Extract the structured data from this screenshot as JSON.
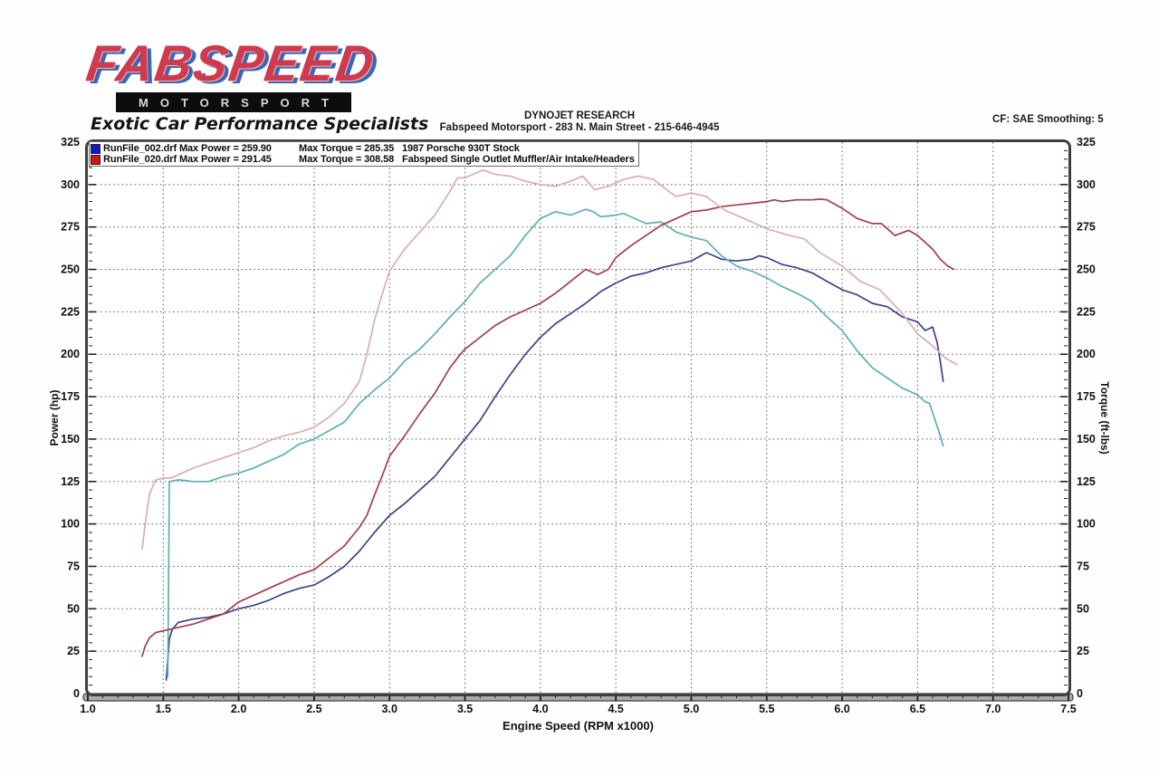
{
  "logo": {
    "brand": "FABSPEED",
    "subbrand": "MOTORSPORT",
    "tagline": "Exotic Car Performance Specialists"
  },
  "header": {
    "title": "DYNOJET RESEARCH",
    "subtitle": "Fabspeed Motorsport - 283 N. Main Street - 215-646-4945",
    "correction_info": "CF: SAE  Smoothing: 5"
  },
  "chart_data": {
    "type": "line",
    "xlabel": "Engine Speed (RPM x1000)",
    "ylabel_left": "Power (hp)",
    "ylabel_right": "Torque (ft-lbs)",
    "xlim": [
      1.0,
      7.5
    ],
    "ylim": [
      0,
      325
    ],
    "x_ticks": [
      "1.0",
      "1.5",
      "2.0",
      "2.5",
      "3.0",
      "3.5",
      "4.0",
      "4.5",
      "5.0",
      "5.5",
      "6.0",
      "6.5",
      "7.0",
      "7.5"
    ],
    "y_ticks": [
      "0",
      "25",
      "50",
      "75",
      "100",
      "125",
      "150",
      "175",
      "200",
      "225",
      "250",
      "275",
      "300",
      "325"
    ],
    "x_minor_step": 0.1,
    "y_minor_step": 5,
    "grid": "dotted",
    "grid_color": "#3c3c3c",
    "legend_position": "top-left",
    "legend": [
      {
        "swatch": "#1515cc",
        "col1": "RunFile_002.drf Max Power = 259.90",
        "col2": "Max Torque = 285.35",
        "col3": "1987 Porsche 930T Stock"
      },
      {
        "swatch": "#cc1515",
        "col1": "RunFile_020.drf Max Power = 291.45",
        "col2": "Max Torque = 308.58",
        "col3": "Fabspeed Single Outlet Muffler/Air Intake/Headers"
      }
    ],
    "series": [
      {
        "name": "stock-power-hp",
        "run": "RunFile_002.drf",
        "max": 259.9,
        "color": "#3c4287",
        "points": [
          [
            1.52,
            8
          ],
          [
            1.53,
            20
          ],
          [
            1.54,
            32
          ],
          [
            1.56,
            38
          ],
          [
            1.6,
            42
          ],
          [
            1.7,
            44
          ],
          [
            1.8,
            45
          ],
          [
            1.9,
            47
          ],
          [
            2.0,
            50
          ],
          [
            2.1,
            52
          ],
          [
            2.2,
            55
          ],
          [
            2.3,
            59
          ],
          [
            2.4,
            62
          ],
          [
            2.5,
            64
          ],
          [
            2.6,
            69
          ],
          [
            2.7,
            75
          ],
          [
            2.8,
            84
          ],
          [
            2.9,
            95
          ],
          [
            3.0,
            105
          ],
          [
            3.1,
            112
          ],
          [
            3.2,
            120
          ],
          [
            3.3,
            128
          ],
          [
            3.4,
            139
          ],
          [
            3.5,
            150
          ],
          [
            3.6,
            161
          ],
          [
            3.7,
            175
          ],
          [
            3.8,
            188
          ],
          [
            3.9,
            200
          ],
          [
            4.0,
            210
          ],
          [
            4.1,
            218
          ],
          [
            4.2,
            224
          ],
          [
            4.3,
            230
          ],
          [
            4.4,
            237
          ],
          [
            4.5,
            242
          ],
          [
            4.6,
            246
          ],
          [
            4.7,
            248
          ],
          [
            4.8,
            251
          ],
          [
            4.9,
            253
          ],
          [
            5.0,
            255
          ],
          [
            5.1,
            259.9
          ],
          [
            5.15,
            258
          ],
          [
            5.2,
            256
          ],
          [
            5.3,
            255
          ],
          [
            5.4,
            256
          ],
          [
            5.45,
            258
          ],
          [
            5.5,
            257
          ],
          [
            5.6,
            253
          ],
          [
            5.7,
            251
          ],
          [
            5.8,
            248
          ],
          [
            5.9,
            243
          ],
          [
            6.0,
            238
          ],
          [
            6.1,
            235
          ],
          [
            6.2,
            230
          ],
          [
            6.3,
            228
          ],
          [
            6.4,
            222
          ],
          [
            6.5,
            219
          ],
          [
            6.55,
            214
          ],
          [
            6.6,
            216
          ],
          [
            6.63,
            207
          ],
          [
            6.65,
            196
          ],
          [
            6.67,
            184
          ]
        ]
      },
      {
        "name": "stock-torque-ftlbs",
        "run": "RunFile_002.drf",
        "max": 285.35,
        "color": "#5fafb4",
        "points": [
          [
            1.53,
            10
          ],
          [
            1.535,
            60
          ],
          [
            1.54,
            125
          ],
          [
            1.6,
            126
          ],
          [
            1.7,
            125
          ],
          [
            1.8,
            125
          ],
          [
            1.9,
            128
          ],
          [
            2.0,
            130
          ],
          [
            2.1,
            133
          ],
          [
            2.2,
            137
          ],
          [
            2.3,
            141
          ],
          [
            2.4,
            147
          ],
          [
            2.5,
            150
          ],
          [
            2.6,
            155
          ],
          [
            2.7,
            160
          ],
          [
            2.8,
            171
          ],
          [
            2.9,
            179
          ],
          [
            3.0,
            186
          ],
          [
            3.1,
            196
          ],
          [
            3.2,
            203
          ],
          [
            3.3,
            212
          ],
          [
            3.4,
            222
          ],
          [
            3.5,
            231
          ],
          [
            3.6,
            242
          ],
          [
            3.7,
            250
          ],
          [
            3.8,
            258
          ],
          [
            3.9,
            270
          ],
          [
            4.0,
            280
          ],
          [
            4.1,
            284
          ],
          [
            4.15,
            283
          ],
          [
            4.2,
            282
          ],
          [
            4.3,
            285.4
          ],
          [
            4.35,
            284
          ],
          [
            4.4,
            281
          ],
          [
            4.5,
            282
          ],
          [
            4.55,
            283
          ],
          [
            4.6,
            281
          ],
          [
            4.7,
            277
          ],
          [
            4.8,
            278
          ],
          [
            4.9,
            272
          ],
          [
            5.0,
            269
          ],
          [
            5.1,
            267
          ],
          [
            5.2,
            258
          ],
          [
            5.3,
            252
          ],
          [
            5.4,
            249
          ],
          [
            5.5,
            245
          ],
          [
            5.6,
            240
          ],
          [
            5.7,
            236
          ],
          [
            5.8,
            231
          ],
          [
            5.9,
            222
          ],
          [
            6.0,
            214
          ],
          [
            6.1,
            202
          ],
          [
            6.2,
            192
          ],
          [
            6.3,
            186
          ],
          [
            6.4,
            180
          ],
          [
            6.5,
            176
          ],
          [
            6.55,
            172
          ],
          [
            6.58,
            171
          ],
          [
            6.62,
            160
          ],
          [
            6.65,
            152
          ],
          [
            6.67,
            146
          ]
        ]
      },
      {
        "name": "fabspeed-power-hp",
        "run": "RunFile_020.drf",
        "max": 291.45,
        "color": "#a04048",
        "points": [
          [
            1.36,
            22
          ],
          [
            1.38,
            28
          ],
          [
            1.41,
            33
          ],
          [
            1.45,
            36
          ],
          [
            1.5,
            37
          ],
          [
            1.6,
            39
          ],
          [
            1.7,
            41
          ],
          [
            1.8,
            44
          ],
          [
            1.9,
            47
          ],
          [
            2.0,
            54
          ],
          [
            2.1,
            58
          ],
          [
            2.2,
            62
          ],
          [
            2.3,
            66
          ],
          [
            2.4,
            70
          ],
          [
            2.5,
            73
          ],
          [
            2.6,
            80
          ],
          [
            2.7,
            87
          ],
          [
            2.8,
            98
          ],
          [
            2.85,
            105
          ],
          [
            2.9,
            117
          ],
          [
            2.95,
            128
          ],
          [
            3.0,
            140
          ],
          [
            3.1,
            152
          ],
          [
            3.2,
            165
          ],
          [
            3.3,
            177
          ],
          [
            3.4,
            192
          ],
          [
            3.47,
            200
          ],
          [
            3.5,
            203
          ],
          [
            3.6,
            210
          ],
          [
            3.7,
            217
          ],
          [
            3.8,
            222
          ],
          [
            3.9,
            226
          ],
          [
            4.0,
            230
          ],
          [
            4.1,
            236
          ],
          [
            4.2,
            243
          ],
          [
            4.3,
            250
          ],
          [
            4.38,
            247
          ],
          [
            4.45,
            250
          ],
          [
            4.5,
            257
          ],
          [
            4.6,
            264
          ],
          [
            4.7,
            270
          ],
          [
            4.8,
            276
          ],
          [
            4.9,
            280
          ],
          [
            5.0,
            284
          ],
          [
            5.1,
            285
          ],
          [
            5.2,
            287
          ],
          [
            5.3,
            288
          ],
          [
            5.4,
            289
          ],
          [
            5.5,
            290
          ],
          [
            5.55,
            291
          ],
          [
            5.6,
            290
          ],
          [
            5.7,
            291
          ],
          [
            5.8,
            291
          ],
          [
            5.85,
            291.45
          ],
          [
            5.9,
            291
          ],
          [
            6.0,
            286
          ],
          [
            6.1,
            280
          ],
          [
            6.2,
            277
          ],
          [
            6.26,
            277
          ],
          [
            6.35,
            270
          ],
          [
            6.44,
            273
          ],
          [
            6.5,
            270
          ],
          [
            6.55,
            266
          ],
          [
            6.6,
            262
          ],
          [
            6.65,
            256
          ],
          [
            6.7,
            252
          ],
          [
            6.74,
            250
          ]
        ]
      },
      {
        "name": "fabspeed-torque-ftlbs",
        "run": "RunFile_020.drf",
        "max": 308.58,
        "color": "#d8aeb6",
        "points": [
          [
            1.36,
            85
          ],
          [
            1.38,
            100
          ],
          [
            1.41,
            118
          ],
          [
            1.45,
            126
          ],
          [
            1.5,
            127
          ],
          [
            1.55,
            127
          ],
          [
            1.6,
            129
          ],
          [
            1.7,
            133
          ],
          [
            1.8,
            136
          ],
          [
            1.9,
            139
          ],
          [
            2.0,
            142
          ],
          [
            2.1,
            145
          ],
          [
            2.2,
            149
          ],
          [
            2.3,
            152
          ],
          [
            2.4,
            154
          ],
          [
            2.5,
            157
          ],
          [
            2.6,
            163
          ],
          [
            2.7,
            171
          ],
          [
            2.8,
            184
          ],
          [
            2.85,
            200
          ],
          [
            2.9,
            220
          ],
          [
            2.95,
            235
          ],
          [
            3.0,
            249
          ],
          [
            3.1,
            262
          ],
          [
            3.2,
            272
          ],
          [
            3.3,
            282
          ],
          [
            3.4,
            296
          ],
          [
            3.45,
            304
          ],
          [
            3.5,
            304
          ],
          [
            3.55,
            306
          ],
          [
            3.62,
            308.58
          ],
          [
            3.7,
            306
          ],
          [
            3.8,
            305
          ],
          [
            3.9,
            302
          ],
          [
            4.0,
            300
          ],
          [
            4.1,
            299
          ],
          [
            4.2,
            302
          ],
          [
            4.28,
            305
          ],
          [
            4.36,
            297
          ],
          [
            4.45,
            299
          ],
          [
            4.55,
            303
          ],
          [
            4.65,
            305
          ],
          [
            4.75,
            303
          ],
          [
            4.85,
            296
          ],
          [
            4.9,
            293
          ],
          [
            5.0,
            295
          ],
          [
            5.1,
            293
          ],
          [
            5.22,
            285
          ],
          [
            5.35,
            280
          ],
          [
            5.5,
            274
          ],
          [
            5.65,
            270
          ],
          [
            5.75,
            268
          ],
          [
            5.85,
            260
          ],
          [
            6.0,
            252
          ],
          [
            6.12,
            243
          ],
          [
            6.25,
            238
          ],
          [
            6.4,
            224
          ],
          [
            6.5,
            212
          ],
          [
            6.6,
            205
          ],
          [
            6.68,
            198
          ],
          [
            6.76,
            194
          ]
        ]
      }
    ]
  }
}
